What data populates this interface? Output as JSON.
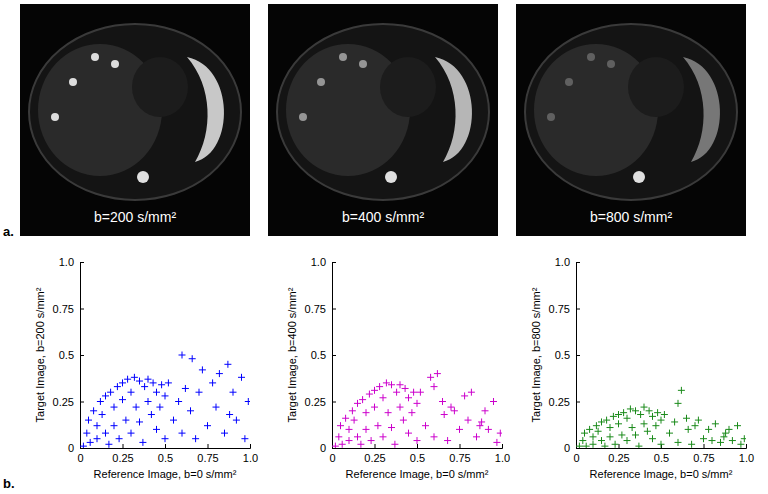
{
  "panels": [
    "a.",
    "b."
  ],
  "images": [
    {
      "label": "b=200 s/mm²"
    },
    {
      "label": "b=400 s/mm²"
    },
    {
      "label": "b=800 s/mm²"
    }
  ],
  "chart_data": [
    {
      "type": "scatter",
      "marker": "plus",
      "color": "#0000ff",
      "x_label": "Reference Image, b=0 s/mm²",
      "y_label": "Target Image, b=200 s/mm²",
      "xlim": [
        0,
        1
      ],
      "ylim": [
        0,
        1
      ],
      "xticks": [
        0,
        0.25,
        0.5,
        0.75,
        {
          "value": 1,
          "label": "1.0"
        }
      ],
      "yticks": [
        0,
        0.25,
        0.5,
        0.75,
        {
          "value": 1,
          "label": "1.0"
        }
      ],
      "x": [
        0.02,
        0.04,
        0.05,
        0.06,
        0.08,
        0.1,
        0.1,
        0.12,
        0.13,
        0.15,
        0.15,
        0.17,
        0.18,
        0.2,
        0.2,
        0.22,
        0.23,
        0.25,
        0.25,
        0.27,
        0.28,
        0.3,
        0.3,
        0.32,
        0.33,
        0.35,
        0.35,
        0.37,
        0.38,
        0.4,
        0.4,
        0.42,
        0.43,
        0.45,
        0.45,
        0.47,
        0.48,
        0.5,
        0.5,
        0.52,
        0.55,
        0.58,
        0.6,
        0.62,
        0.65,
        0.66,
        0.68,
        0.7,
        0.72,
        0.75,
        0.78,
        0.8,
        0.82,
        0.85,
        0.87,
        0.9,
        0.92,
        0.95,
        0.97,
        0.99,
        0.6,
        0.88
      ],
      "values": [
        0.01,
        0.08,
        0.15,
        0.03,
        0.2,
        0.12,
        0.05,
        0.25,
        0.18,
        0.08,
        0.28,
        0.02,
        0.3,
        0.22,
        0.12,
        0.33,
        0.05,
        0.35,
        0.26,
        0.15,
        0.37,
        0.3,
        0.08,
        0.38,
        0.22,
        0.36,
        0.14,
        0.03,
        0.33,
        0.37,
        0.25,
        0.18,
        0.35,
        0.3,
        0.1,
        0.22,
        0.34,
        0.28,
        0.05,
        0.35,
        0.15,
        0.25,
        0.08,
        0.32,
        0.2,
        0.48,
        0.05,
        0.3,
        0.42,
        0.12,
        0.35,
        0.22,
        0.4,
        0.08,
        0.45,
        0.3,
        0.15,
        0.38,
        0.05,
        0.25,
        0.5,
        0.18
      ]
    },
    {
      "type": "scatter",
      "marker": "plus",
      "color": "#cc00cc",
      "x_label": "Reference Image, b=0 s/mm²",
      "y_label": "Target Image, b=400 s/mm²",
      "xlim": [
        0,
        1
      ],
      "ylim": [
        0,
        1
      ],
      "xticks": [
        0,
        0.25,
        0.5,
        0.75,
        {
          "value": 1,
          "label": "1.0"
        }
      ],
      "yticks": [
        0,
        0.25,
        0.5,
        0.75,
        {
          "value": 1,
          "label": "1.0"
        }
      ],
      "x": [
        0.02,
        0.04,
        0.05,
        0.06,
        0.08,
        0.1,
        0.1,
        0.12,
        0.13,
        0.15,
        0.15,
        0.17,
        0.18,
        0.2,
        0.2,
        0.22,
        0.23,
        0.25,
        0.25,
        0.27,
        0.28,
        0.3,
        0.3,
        0.32,
        0.33,
        0.35,
        0.35,
        0.37,
        0.38,
        0.4,
        0.4,
        0.42,
        0.43,
        0.45,
        0.45,
        0.47,
        0.48,
        0.5,
        0.5,
        0.52,
        0.55,
        0.58,
        0.6,
        0.62,
        0.65,
        0.66,
        0.68,
        0.7,
        0.72,
        0.75,
        0.78,
        0.8,
        0.82,
        0.85,
        0.87,
        0.9,
        0.92,
        0.95,
        0.97,
        0.99,
        0.6,
        0.88
      ],
      "values": [
        0.01,
        0.06,
        0.12,
        0.02,
        0.16,
        0.1,
        0.04,
        0.2,
        0.15,
        0.06,
        0.24,
        0.02,
        0.26,
        0.19,
        0.1,
        0.29,
        0.04,
        0.31,
        0.22,
        0.12,
        0.33,
        0.27,
        0.06,
        0.35,
        0.19,
        0.34,
        0.11,
        0.02,
        0.3,
        0.34,
        0.22,
        0.15,
        0.32,
        0.27,
        0.08,
        0.19,
        0.3,
        0.24,
        0.04,
        0.3,
        0.12,
        0.38,
        0.06,
        0.4,
        0.25,
        0.18,
        0.04,
        0.22,
        0.2,
        0.1,
        0.28,
        0.15,
        0.3,
        0.06,
        0.12,
        0.2,
        0.1,
        0.25,
        0.03,
        0.08,
        0.33,
        0.14
      ]
    },
    {
      "type": "scatter",
      "marker": "plus",
      "color": "#1a8a1a",
      "x_label": "Reference Image, b=0 s/mm²",
      "y_label": "Target Image, b=800 s/mm²",
      "xlim": [
        0,
        1
      ],
      "ylim": [
        0,
        1
      ],
      "xticks": [
        0,
        0.25,
        0.5,
        0.75,
        {
          "value": 1,
          "label": "1.0"
        }
      ],
      "yticks": [
        0,
        0.25,
        0.5,
        0.75,
        {
          "value": 1,
          "label": "1.0"
        }
      ],
      "x": [
        0.02,
        0.04,
        0.05,
        0.06,
        0.08,
        0.1,
        0.1,
        0.12,
        0.13,
        0.15,
        0.15,
        0.17,
        0.18,
        0.2,
        0.2,
        0.22,
        0.23,
        0.25,
        0.25,
        0.27,
        0.28,
        0.3,
        0.3,
        0.32,
        0.33,
        0.35,
        0.35,
        0.37,
        0.38,
        0.4,
        0.4,
        0.42,
        0.43,
        0.45,
        0.45,
        0.47,
        0.48,
        0.5,
        0.5,
        0.52,
        0.55,
        0.58,
        0.6,
        0.62,
        0.65,
        0.66,
        0.68,
        0.7,
        0.72,
        0.75,
        0.78,
        0.8,
        0.82,
        0.85,
        0.87,
        0.9,
        0.92,
        0.95,
        0.97,
        0.99,
        0.6,
        0.88
      ],
      "values": [
        0.01,
        0.04,
        0.08,
        0.01,
        0.1,
        0.06,
        0.02,
        0.12,
        0.09,
        0.04,
        0.14,
        0.01,
        0.15,
        0.11,
        0.06,
        0.17,
        0.02,
        0.18,
        0.13,
        0.07,
        0.19,
        0.16,
        0.04,
        0.21,
        0.11,
        0.2,
        0.07,
        0.01,
        0.18,
        0.22,
        0.13,
        0.09,
        0.2,
        0.17,
        0.05,
        0.12,
        0.19,
        0.15,
        0.02,
        0.18,
        0.08,
        0.14,
        0.03,
        0.31,
        0.16,
        0.1,
        0.02,
        0.12,
        0.15,
        0.05,
        0.1,
        0.04,
        0.13,
        0.03,
        0.06,
        0.1,
        0.04,
        0.12,
        0.02,
        0.05,
        0.24,
        0.08
      ]
    }
  ]
}
